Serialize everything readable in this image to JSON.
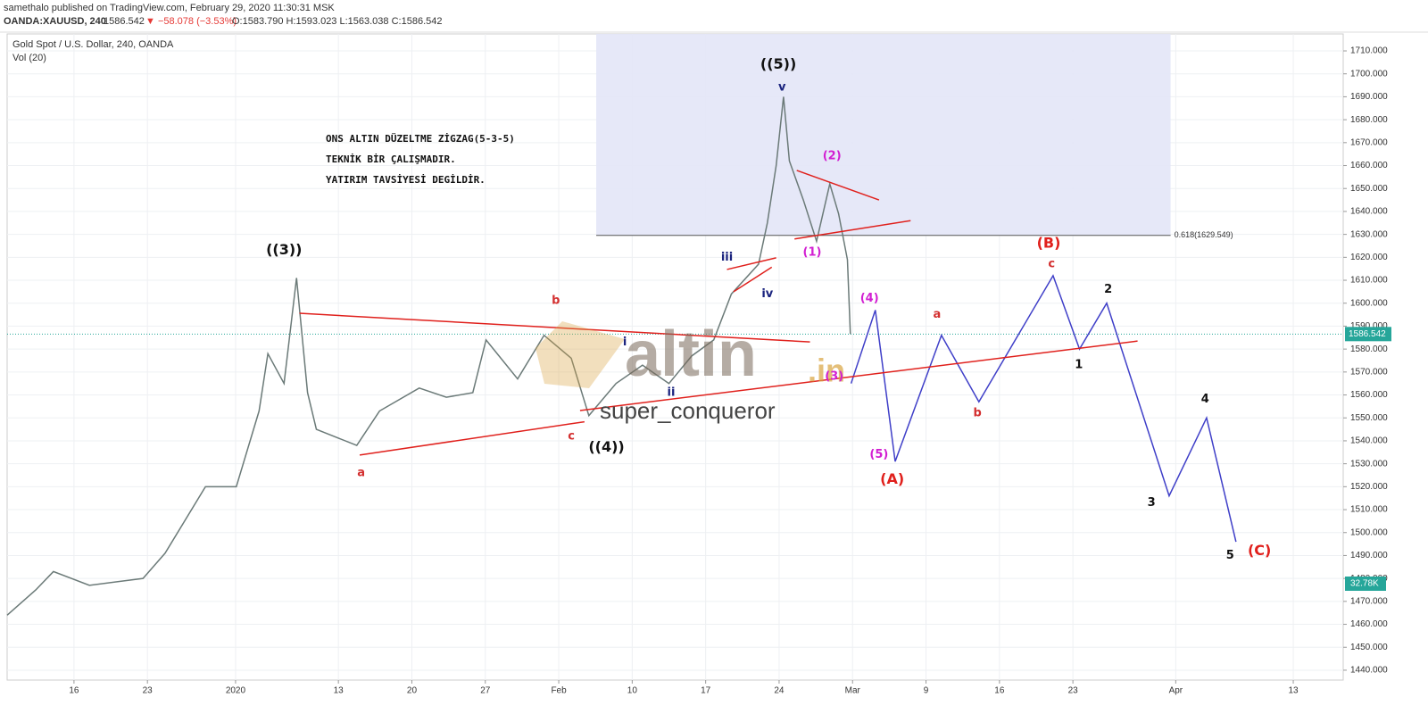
{
  "header": {
    "publisher": "samethalo published on TradingView.com, February 29, 2020 11:30:31 MSK",
    "symbol": "OANDA:XAUUSD, 240",
    "last": "1586.542",
    "change": "▼ −58.078 (−3.53%)",
    "ohlc": "O:1583.790 H:1593.023 L:1563.038 C:1586.542"
  },
  "chart_data": {
    "type": "line",
    "title": "Gold Spot / U.S. Dollar, 240, OANDA",
    "subtitle": "Vol (20)",
    "note": [
      "ONS ALTIN DÜZELTME  ZİGZAG(5-3-5)",
      "TEKNİK BİR ÇALIŞMADIR.",
      "YATIRIM TAVSİYESİ DEGİLDİR."
    ],
    "watermark": [
      "altin",
      ".in",
      "super_conqueror"
    ],
    "xlim": [
      -0.91,
      17.28
    ],
    "ylim": [
      1435.7,
      1717.4
    ],
    "xticks": [
      {
        "value": 0,
        "label": "16"
      },
      {
        "value": 1,
        "label": "23"
      },
      {
        "value": 2.2,
        "label": "2020"
      },
      {
        "value": 3.6,
        "label": "13"
      },
      {
        "value": 4.6,
        "label": "20"
      },
      {
        "value": 5.6,
        "label": "27"
      },
      {
        "value": 6.6,
        "label": "Feb"
      },
      {
        "value": 7.6,
        "label": "10"
      },
      {
        "value": 8.6,
        "label": "17"
      },
      {
        "value": 9.6,
        "label": "24"
      },
      {
        "value": 10.6,
        "label": "Mar"
      },
      {
        "value": 11.6,
        "label": "9"
      },
      {
        "value": 12.6,
        "label": "16"
      },
      {
        "value": 13.6,
        "label": "23"
      },
      {
        "value": 15.0,
        "label": "Apr"
      },
      {
        "value": 16.6,
        "label": "13"
      }
    ],
    "yticks": [
      {
        "value": 1440,
        "label": "1440.000"
      },
      {
        "value": 1450,
        "label": "1450.000"
      },
      {
        "value": 1460,
        "label": "1460.000"
      },
      {
        "value": 1470,
        "label": "1470.000"
      },
      {
        "value": 1480,
        "label": "1480.000"
      },
      {
        "value": 1490,
        "label": "1490.000"
      },
      {
        "value": 1500,
        "label": "1500.000"
      },
      {
        "value": 1510,
        "label": "1510.000"
      },
      {
        "value": 1520,
        "label": "1520.000"
      },
      {
        "value": 1530,
        "label": "1530.000"
      },
      {
        "value": 1540,
        "label": "1540.000"
      },
      {
        "value": 1550,
        "label": "1550.000"
      },
      {
        "value": 1560,
        "label": "1560.000"
      },
      {
        "value": 1570,
        "label": "1570.000"
      },
      {
        "value": 1580,
        "label": "1580.000"
      },
      {
        "value": 1590,
        "label": "1590.000"
      },
      {
        "value": 1600,
        "label": "1600.000"
      },
      {
        "value": 1610,
        "label": "1610.000"
      },
      {
        "value": 1620,
        "label": "1620.000"
      },
      {
        "value": 1630,
        "label": "1630.000"
      },
      {
        "value": 1640,
        "label": "1640.000"
      },
      {
        "value": 1650,
        "label": "1650.000"
      },
      {
        "value": 1660,
        "label": "1660.000"
      },
      {
        "value": 1670,
        "label": "1670.000"
      },
      {
        "value": 1680,
        "label": "1680.000"
      },
      {
        "value": 1690,
        "label": "1690.000"
      },
      {
        "value": 1700,
        "label": "1700.000"
      },
      {
        "value": 1710,
        "label": "1710.000"
      }
    ],
    "grid": true,
    "series": [
      {
        "color": "#6b7a78",
        "x": [
          -0.91,
          -0.52,
          -0.28,
          0.21,
          0.94,
          1.24,
          1.79,
          2.21,
          2.52,
          2.64,
          2.86,
          3.03,
          3.18,
          3.3,
          3.85,
          4.16,
          4.7,
          5.07,
          5.43,
          5.61,
          6.04,
          6.4,
          6.77,
          7.01,
          7.38,
          7.74,
          8.1,
          8.41,
          8.71,
          8.95,
          9.32,
          9.44,
          9.56,
          9.66,
          9.74,
          9.93,
          10.11,
          10.29,
          10.41,
          10.53,
          10.57
        ],
        "values": [
          1464,
          1475,
          1483,
          1477,
          1480,
          1491,
          1520,
          1520,
          1553,
          1578,
          1565,
          1611,
          1561,
          1545,
          1538,
          1553,
          1563,
          1559,
          1561,
          1584,
          1567,
          1586,
          1576,
          1551,
          1565,
          1573,
          1565,
          1577,
          1584,
          1604,
          1617,
          1635,
          1660,
          1690,
          1662,
          1645,
          1627,
          1652,
          1639,
          1619,
          1586.542
        ]
      },
      {
        "color": "#3f3fc8",
        "x": [
          10.58,
          10.91,
          11.18,
          11.81,
          12.32,
          13.33,
          13.69,
          14.06,
          14.91,
          15.42,
          15.82
        ],
        "values": [
          1565,
          1597,
          1531,
          1586,
          1557,
          1612,
          1580,
          1600,
          1516,
          1550,
          1496
        ]
      }
    ],
    "trendlines": {
      "color": "#e0201c",
      "lines": [
        {
          "x": [
            3.07,
            10.02
          ],
          "y": [
            1595.6,
            1583.1
          ]
        },
        {
          "x": [
            3.89,
            6.95
          ],
          "y": [
            1533.8,
            1548.3
          ]
        },
        {
          "x": [
            6.89,
            14.48
          ],
          "y": [
            1553.2,
            1583.5
          ]
        },
        {
          "x": [
            9.84,
            10.96
          ],
          "y": [
            1657.9,
            1645
          ]
        },
        {
          "x": [
            9.81,
            11.39
          ],
          "y": [
            1628,
            1636
          ]
        },
        {
          "x": [
            8.89,
            9.56
          ],
          "y": [
            1614.7,
            1619.8
          ]
        },
        {
          "x": [
            8.98,
            9.5
          ],
          "y": [
            1605,
            1615.7
          ]
        }
      ]
    },
    "fib": {
      "value": 1629.549,
      "label": "0.618(1629.549)",
      "x": 7.11,
      "x2": 14.93
    },
    "last_price": {
      "value": 1586.542,
      "label": "1586.542",
      "color": "#26a69a"
    },
    "volume_label": "32.78K",
    "annotations": [
      {
        "text": "((3))",
        "x": 2.86,
        "y": 1623,
        "color": "#111"
      },
      {
        "text": "a",
        "x": 3.91,
        "y": 1526,
        "color": "#d32f2f"
      },
      {
        "text": "b",
        "x": 6.56,
        "y": 1601,
        "color": "#d32f2f"
      },
      {
        "text": "c",
        "x": 6.77,
        "y": 1542,
        "color": "#d32f2f"
      },
      {
        "text": "((4))",
        "x": 7.25,
        "y": 1537,
        "color": "#111"
      },
      {
        "text": "i",
        "x": 7.5,
        "y": 1583,
        "color": "#1a237e"
      },
      {
        "text": "ii",
        "x": 8.13,
        "y": 1561,
        "color": "#1a237e"
      },
      {
        "text": "iii",
        "x": 8.89,
        "y": 1620,
        "color": "#1a237e"
      },
      {
        "text": "iv",
        "x": 9.44,
        "y": 1604,
        "color": "#1a237e"
      },
      {
        "text": "v",
        "x": 9.64,
        "y": 1694,
        "color": "#1a237e"
      },
      {
        "text": "((5))",
        "x": 9.59,
        "y": 1704,
        "color": "#111"
      },
      {
        "text": "(1)",
        "x": 10.05,
        "y": 1622,
        "color": "#d21fd2"
      },
      {
        "text": "(2)",
        "x": 10.32,
        "y": 1664,
        "color": "#d21fd2"
      },
      {
        "text": "(3)",
        "x": 10.35,
        "y": 1568,
        "color": "#d21fd2"
      },
      {
        "text": "(4)",
        "x": 10.83,
        "y": 1602,
        "color": "#d21fd2"
      },
      {
        "text": "(5)",
        "x": 10.96,
        "y": 1534,
        "color": "#d21fd2"
      },
      {
        "text": "(A)",
        "x": 11.14,
        "y": 1523,
        "color": "#e0201c"
      },
      {
        "text": "a",
        "x": 11.75,
        "y": 1595,
        "color": "#d32f2f"
      },
      {
        "text": "b",
        "x": 12.3,
        "y": 1552,
        "color": "#d32f2f"
      },
      {
        "text": "(B)",
        "x": 13.27,
        "y": 1626,
        "color": "#e0201c"
      },
      {
        "text": "c",
        "x": 13.31,
        "y": 1617,
        "color": "#d32f2f"
      },
      {
        "text": "1",
        "x": 13.68,
        "y": 1573,
        "color": "#111"
      },
      {
        "text": "2",
        "x": 14.08,
        "y": 1606,
        "color": "#111"
      },
      {
        "text": "3",
        "x": 14.67,
        "y": 1513,
        "color": "#111"
      },
      {
        "text": "4",
        "x": 15.4,
        "y": 1558,
        "color": "#111"
      },
      {
        "text": "5",
        "x": 15.74,
        "y": 1490,
        "color": "#111"
      },
      {
        "text": "(C)",
        "x": 16.14,
        "y": 1492,
        "color": "#e0201c"
      }
    ]
  }
}
